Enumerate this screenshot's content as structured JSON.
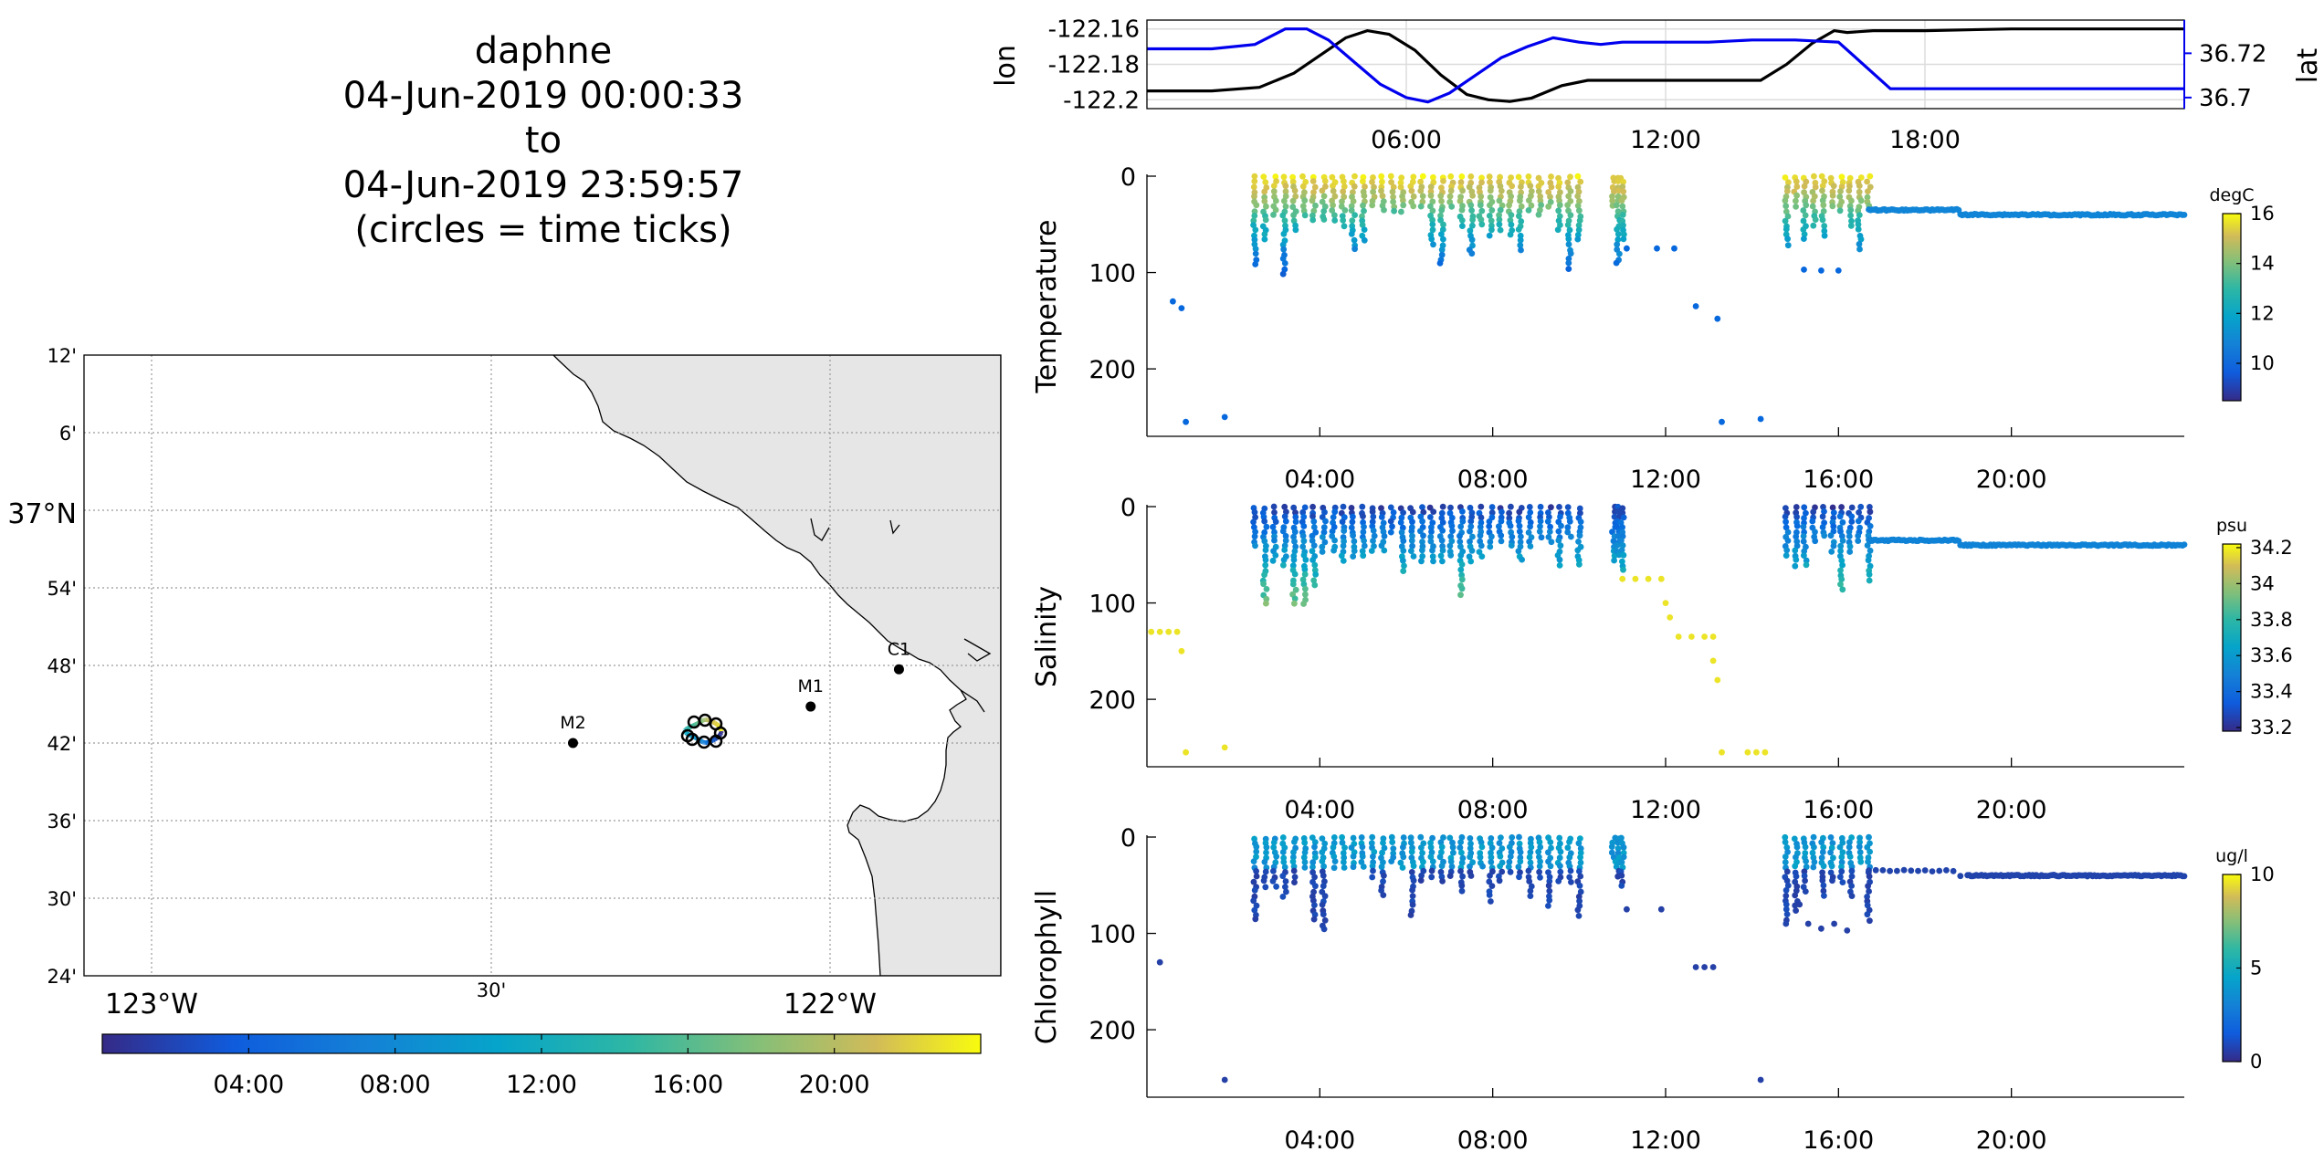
{
  "title": {
    "line1": "daphne",
    "line2": "04-Jun-2019 00:00:33",
    "line3": "to",
    "line4": "04-Jun-2019 23:59:57",
    "line5": "(circles = time ticks)"
  },
  "colors": {
    "black_line": "#000000",
    "blue_line": "#0000ee",
    "land": "#e6e6e6",
    "grid": "#c8c8c8"
  },
  "map": {
    "lat_ticks": [
      "12'",
      "6'",
      "37°N",
      "54'",
      "48'",
      "42'",
      "36'",
      "30'",
      "24'"
    ],
    "lon_ticks": [
      "123°W",
      "30'",
      "122°W"
    ],
    "stations": [
      {
        "name": "M2",
        "lon": -122.38,
        "lat": 36.7
      },
      {
        "name": "M1",
        "lon": -122.03,
        "lat": 36.747
      },
      {
        "name": "C1",
        "lon": -121.9,
        "lat": 36.795
      }
    ],
    "lon_range": [
      -123.1,
      -121.75
    ],
    "lat_range": [
      36.4,
      37.2
    ]
  },
  "time_colorbar": {
    "ticks": [
      "04:00",
      "08:00",
      "12:00",
      "16:00",
      "20:00"
    ],
    "tick_hours": [
      4,
      8,
      12,
      16,
      20
    ],
    "range_hours": [
      0,
      24
    ]
  },
  "chart_data": [
    {
      "type": "line",
      "ylabel": "lon",
      "ylabel_right": "lat",
      "xlim_hours": [
        0,
        24
      ],
      "x_ticks": [
        "06:00",
        "12:00",
        "18:00"
      ],
      "x_tick_hours": [
        6,
        12,
        18
      ],
      "y_ticks": [
        "-122.16",
        "-122.18",
        "-122.2"
      ],
      "y_tick_values": [
        -122.16,
        -122.18,
        -122.2
      ],
      "ylim": [
        -122.205,
        -122.155
      ],
      "y2_ticks": [
        "36.72",
        "36.7"
      ],
      "y2_tick_values": [
        36.72,
        36.7
      ],
      "y2lim": [
        36.695,
        36.735
      ],
      "series": [
        {
          "axis": "left",
          "x_hours": [
            0,
            1.5,
            2.6,
            3.4,
            4.0,
            4.6,
            5.1,
            5.6,
            6.2,
            6.8,
            7.4,
            7.9,
            8.4,
            8.9,
            9.6,
            10.2,
            10.8,
            12.0,
            13.0,
            14.2,
            14.8,
            15.4,
            15.9,
            16.2,
            16.8,
            18.0,
            20.0,
            22.0,
            24.0
          ],
          "y_values": [
            -122.195,
            -122.195,
            -122.193,
            -122.185,
            -122.175,
            -122.165,
            -122.161,
            -122.163,
            -122.172,
            -122.186,
            -122.197,
            -122.2,
            -122.201,
            -122.199,
            -122.192,
            -122.189,
            -122.189,
            -122.189,
            -122.189,
            -122.189,
            -122.18,
            -122.168,
            -122.161,
            -122.162,
            -122.161,
            -122.161,
            -122.16,
            -122.16,
            -122.16
          ]
        },
        {
          "axis": "right",
          "x_hours": [
            0,
            1.5,
            2.5,
            3.2,
            3.7,
            4.2,
            4.8,
            5.4,
            6.0,
            6.5,
            7.0,
            7.6,
            8.2,
            8.8,
            9.4,
            10.0,
            10.5,
            11.0,
            12.0,
            13.0,
            14.0,
            15.0,
            16.0,
            16.4,
            16.8,
            17.2,
            18.0,
            20.0,
            22.0,
            24.0
          ],
          "y_values": [
            36.722,
            36.722,
            36.724,
            36.731,
            36.731,
            36.726,
            36.716,
            36.706,
            36.7,
            36.698,
            36.702,
            36.71,
            36.718,
            36.723,
            36.727,
            36.725,
            36.724,
            36.725,
            36.725,
            36.725,
            36.726,
            36.726,
            36.725,
            36.718,
            36.711,
            36.704,
            36.704,
            36.704,
            36.704,
            36.704
          ]
        }
      ]
    },
    {
      "type": "scatter",
      "ylabel": "Temperature",
      "colorbar_label": "degC",
      "colorbar_ticks": [
        "16",
        "14",
        "12",
        "10"
      ],
      "colorbar_tick_values": [
        16,
        14,
        12,
        10
      ],
      "crange": [
        8.5,
        16
      ],
      "ylim": [
        0,
        270
      ],
      "y_ticks": [
        "0",
        "100",
        "200"
      ],
      "y_tick_values": [
        0,
        100,
        200
      ],
      "x_ticks": [
        "04:00",
        "08:00",
        "12:00",
        "16:00",
        "20:00"
      ],
      "x_tick_hours": [
        4,
        8,
        12,
        16,
        20
      ],
      "xlim_hours": [
        0,
        24
      ],
      "profiles": [
        {
          "t0": 2.5,
          "t1": 10.0,
          "n": 34
        },
        {
          "t0": 10.8,
          "t1": 11.0,
          "n": 3
        },
        {
          "t0": 14.8,
          "t1": 16.7,
          "n": 10
        }
      ],
      "max_depth": 100,
      "deep_points": [
        [
          0.6,
          130
        ],
        [
          0.8,
          137
        ],
        [
          0.9,
          255
        ],
        [
          1.8,
          250
        ],
        [
          11.1,
          75
        ],
        [
          11.8,
          75
        ],
        [
          12.2,
          75
        ],
        [
          12.7,
          135
        ],
        [
          13.2,
          148
        ],
        [
          13.3,
          255
        ],
        [
          14.2,
          252
        ],
        [
          15.2,
          97
        ],
        [
          15.6,
          98
        ],
        [
          16.0,
          98
        ]
      ],
      "tow": {
        "t0": 16.7,
        "t1": 24.0,
        "depth_start": 35,
        "depth_end": 40,
        "value": 10.5
      }
    },
    {
      "type": "scatter",
      "ylabel": "Salinity",
      "colorbar_label": "psu",
      "colorbar_ticks": [
        "34.2",
        "34",
        "33.8",
        "33.6",
        "33.4",
        "33.2"
      ],
      "colorbar_tick_values": [
        34.2,
        34.0,
        33.8,
        33.6,
        33.4,
        33.2
      ],
      "crange": [
        33.18,
        34.22
      ],
      "ylim": [
        0,
        270
      ],
      "y_ticks": [
        "0",
        "100",
        "200"
      ],
      "y_tick_values": [
        0,
        100,
        200
      ],
      "x_ticks": [
        "04:00",
        "08:00",
        "12:00",
        "16:00",
        "20:00"
      ],
      "x_tick_hours": [
        4,
        8,
        12,
        16,
        20
      ],
      "xlim_hours": [
        0,
        24
      ],
      "profiles": [
        {
          "t0": 2.5,
          "t1": 10.0,
          "n": 34
        },
        {
          "t0": 10.8,
          "t1": 11.0,
          "n": 3
        },
        {
          "t0": 14.8,
          "t1": 16.7,
          "n": 10
        }
      ],
      "max_depth": 100,
      "deep_points": [
        [
          0.1,
          130
        ],
        [
          0.3,
          130
        ],
        [
          0.5,
          130
        ],
        [
          0.7,
          130
        ],
        [
          0.8,
          150
        ],
        [
          0.9,
          255
        ],
        [
          1.8,
          250
        ],
        [
          11.0,
          75
        ],
        [
          11.3,
          75
        ],
        [
          11.6,
          75
        ],
        [
          11.9,
          75
        ],
        [
          12.0,
          100
        ],
        [
          12.1,
          115
        ],
        [
          12.3,
          135
        ],
        [
          12.6,
          135
        ],
        [
          12.9,
          135
        ],
        [
          13.1,
          135
        ],
        [
          13.1,
          160
        ],
        [
          13.2,
          180
        ],
        [
          13.3,
          255
        ],
        [
          13.9,
          255
        ],
        [
          14.1,
          255
        ],
        [
          14.3,
          255
        ]
      ],
      "tow": {
        "t0": 16.7,
        "t1": 24.0,
        "depth_start": 35,
        "depth_end": 40,
        "value": 33.45
      }
    },
    {
      "type": "scatter",
      "ylabel": "Chlorophyll",
      "colorbar_label": "ug/l",
      "colorbar_ticks": [
        "10",
        "5",
        "0"
      ],
      "colorbar_tick_values": [
        10,
        5,
        0
      ],
      "crange": [
        0,
        10
      ],
      "ylim": [
        0,
        270
      ],
      "y_ticks": [
        "0",
        "100",
        "200"
      ],
      "y_tick_values": [
        0,
        100,
        200
      ],
      "x_ticks": [
        "04:00",
        "08:00",
        "12:00",
        "16:00",
        "20:00"
      ],
      "x_tick_hours": [
        4,
        8,
        12,
        16,
        20
      ],
      "xlim_hours": [
        0,
        24
      ],
      "profiles": [
        {
          "t0": 2.5,
          "t1": 10.0,
          "n": 34
        },
        {
          "t0": 10.8,
          "t1": 11.0,
          "n": 3
        },
        {
          "t0": 14.8,
          "t1": 16.7,
          "n": 10
        }
      ],
      "max_depth": 95,
      "deep_points": [
        [
          0.3,
          130
        ],
        [
          1.8,
          252
        ],
        [
          11.1,
          75
        ],
        [
          11.9,
          75
        ],
        [
          12.7,
          135
        ],
        [
          12.9,
          135
        ],
        [
          13.1,
          135
        ],
        [
          14.2,
          252
        ],
        [
          15.1,
          70
        ],
        [
          15.3,
          90
        ],
        [
          15.6,
          95
        ],
        [
          15.9,
          90
        ],
        [
          16.2,
          97
        ]
      ],
      "tow": {
        "t0": 16.7,
        "t1": 24.0,
        "depth_start": 35,
        "depth_end": 40,
        "value": 0.6
      }
    }
  ]
}
